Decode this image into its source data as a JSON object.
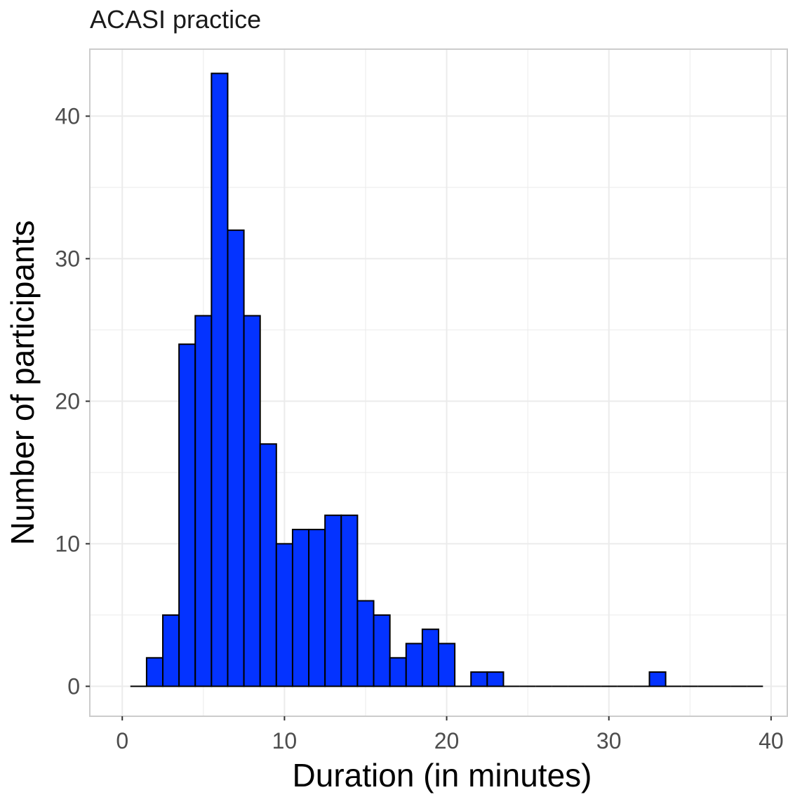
{
  "chart_data": {
    "type": "bar",
    "subtype": "histogram",
    "title": "ACASI practice",
    "xlabel": "Duration (in minutes)",
    "ylabel": "Number of participants",
    "xlim": [
      -2,
      41
    ],
    "ylim": [
      -2.1,
      44.7
    ],
    "xticks": [
      0,
      10,
      20,
      30,
      40
    ],
    "yticks": [
      0,
      10,
      20,
      30,
      40
    ],
    "grid": true,
    "bin_width": 1,
    "bin_start": 0.5,
    "values": [
      0,
      2,
      5,
      24,
      26,
      43,
      32,
      26,
      17,
      10,
      11,
      11,
      12,
      12,
      6,
      5,
      2,
      3,
      4,
      3,
      0,
      1,
      1,
      0,
      0,
      0,
      0,
      0,
      0,
      0,
      0,
      0,
      1,
      0,
      0,
      0,
      0,
      0,
      0
    ],
    "colors": {
      "bar_fill": "#0433ff",
      "bar_stroke": "#000000",
      "grid": "#ebebeb",
      "panel_border": "#cccccc"
    }
  }
}
